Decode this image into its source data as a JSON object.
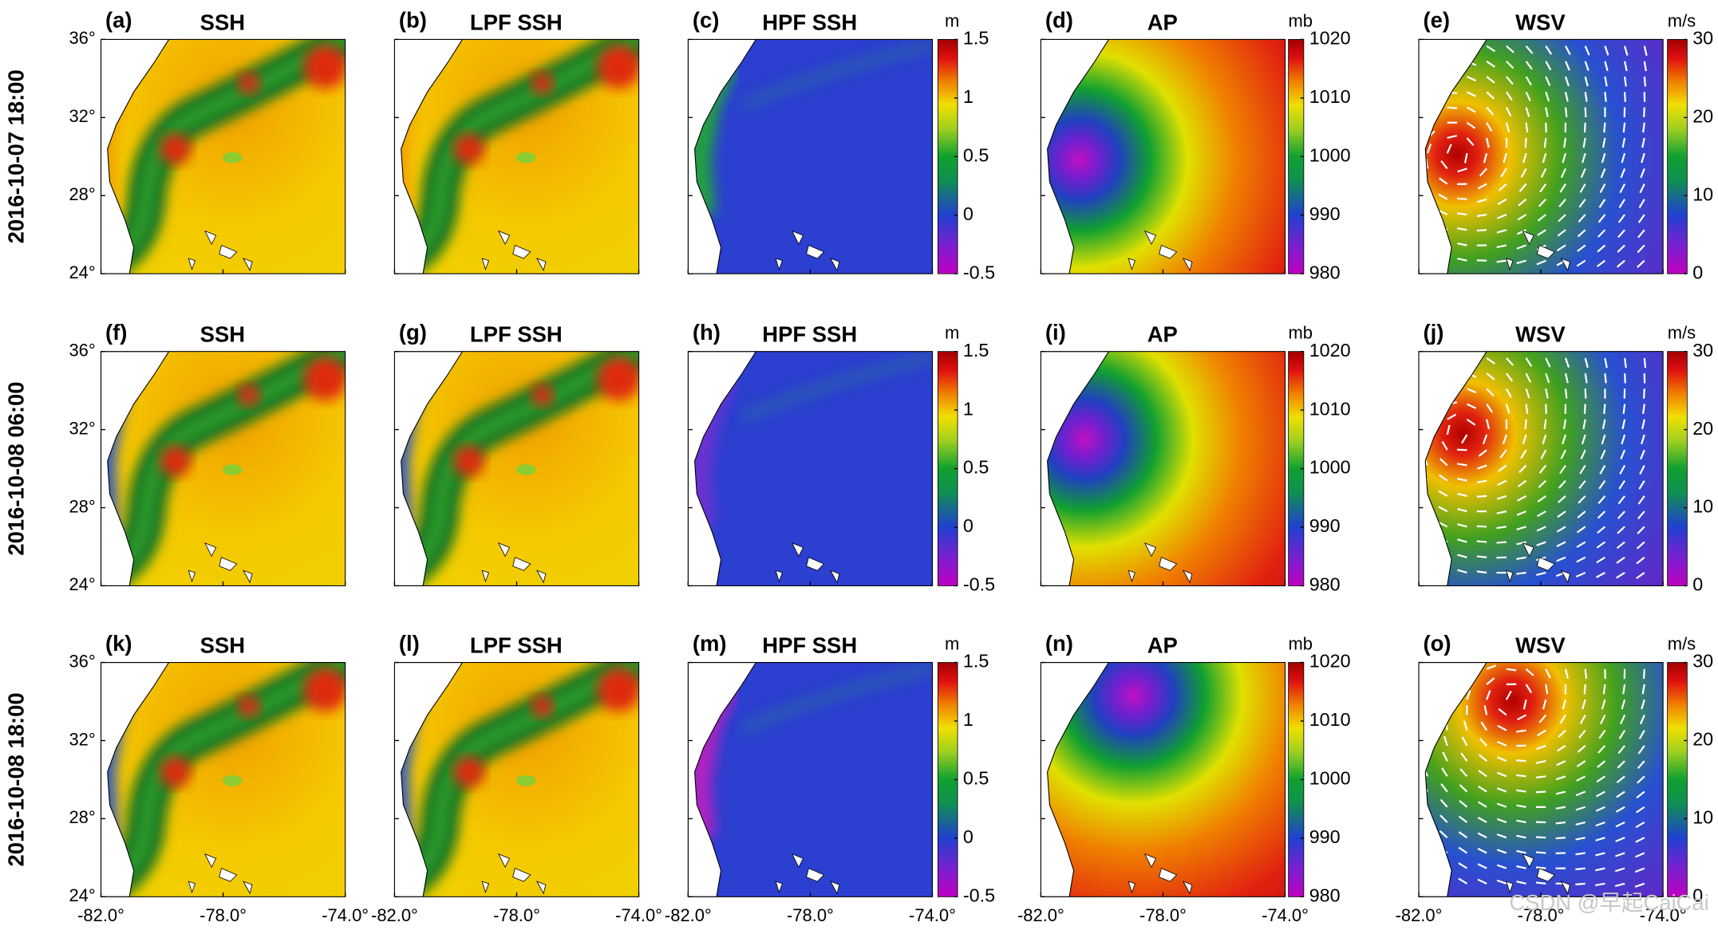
{
  "rows": [
    {
      "label": "2016-10-07 18:00",
      "panels": [
        {
          "tag": "(a)",
          "title": "SSH"
        },
        {
          "tag": "(b)",
          "title": "LPF SSH"
        },
        {
          "tag": "(c)",
          "title": "HPF SSH"
        },
        {
          "tag": "(d)",
          "title": "AP"
        },
        {
          "tag": "(e)",
          "title": "WSV"
        }
      ]
    },
    {
      "label": "2016-10-08 06:00",
      "panels": [
        {
          "tag": "(f)",
          "title": "SSH"
        },
        {
          "tag": "(g)",
          "title": "LPF SSH"
        },
        {
          "tag": "(h)",
          "title": "HPF SSH"
        },
        {
          "tag": "(i)",
          "title": "AP"
        },
        {
          "tag": "(j)",
          "title": "WSV"
        }
      ]
    },
    {
      "label": "2016-10-08 18:00",
      "panels": [
        {
          "tag": "(k)",
          "title": "SSH"
        },
        {
          "tag": "(l)",
          "title": "LPF SSH"
        },
        {
          "tag": "(m)",
          "title": "HPF SSH"
        },
        {
          "tag": "(n)",
          "title": "AP"
        },
        {
          "tag": "(o)",
          "title": "WSV"
        }
      ]
    }
  ],
  "colorbars": [
    {
      "unit": "m",
      "lim": [
        -0.5,
        1.5
      ],
      "ticks": [
        -0.5,
        0,
        0.5,
        1,
        1.5
      ]
    },
    {
      "unit": "mb",
      "lim": [
        980,
        1020
      ],
      "ticks": [
        980,
        990,
        1000,
        1010,
        1020
      ]
    },
    {
      "unit": "m/s",
      "lim": [
        0,
        30
      ],
      "ticks": [
        0,
        10,
        20,
        30
      ]
    }
  ],
  "ylim": [
    24,
    36
  ],
  "yticks": [
    {
      "value": 24,
      "label": "24°"
    },
    {
      "value": 28,
      "label": "28°"
    },
    {
      "value": 32,
      "label": "32°"
    },
    {
      "value": 36,
      "label": "36°"
    }
  ],
  "xlim": [
    -82,
    -74
  ],
  "xticks": [
    {
      "value": -82,
      "label": "-82.0°"
    },
    {
      "value": -78,
      "label": "-78.0°"
    },
    {
      "value": -74,
      "label": "-74.0°"
    }
  ],
  "watermark": "CSDN @早起CaiCai"
}
